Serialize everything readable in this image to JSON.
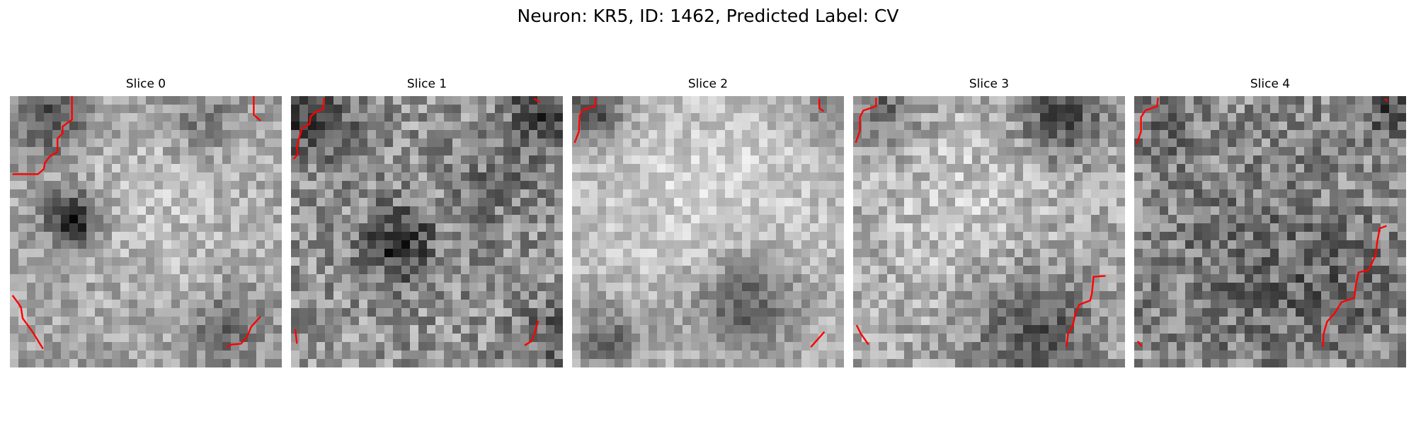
{
  "title": "Neuron: KR5, ID: 1462, Predicted Label: CV",
  "panels": [
    {
      "title": "Slice 0"
    },
    {
      "title": "Slice 1"
    },
    {
      "title": "Slice 2"
    },
    {
      "title": "Slice 3"
    },
    {
      "title": "Slice 4"
    }
  ],
  "colors": {
    "contour": "#ff0000",
    "background": "#ffffff"
  }
}
